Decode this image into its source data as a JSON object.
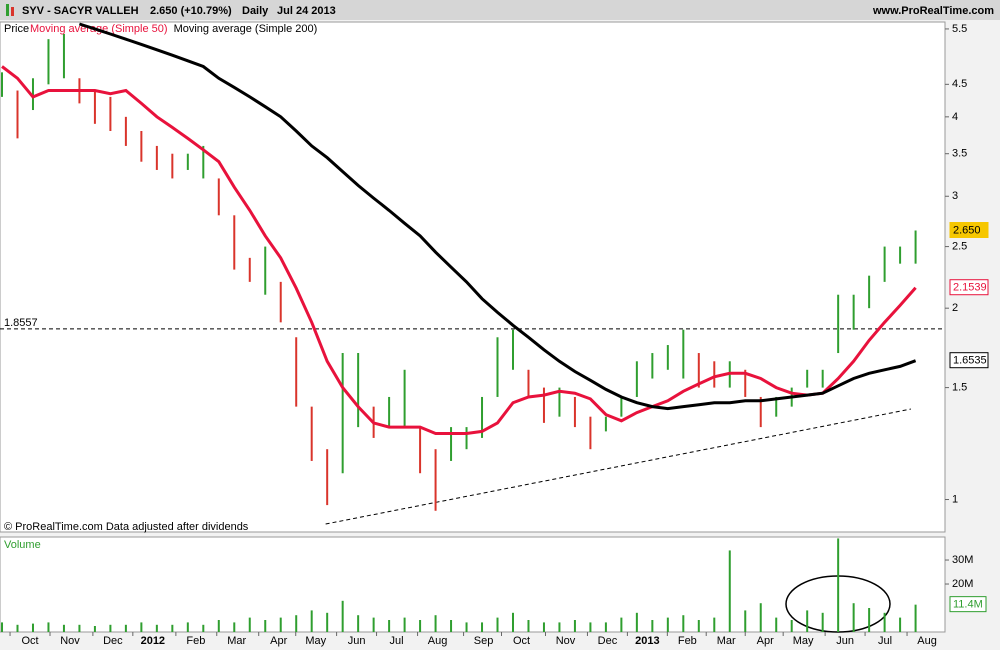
{
  "chart_data": [
    {
      "type": "price",
      "title": "SYV - SACYR VALLEH",
      "quote": "2.650 (+10.79%)",
      "period": "Daily",
      "date": "Jul 24 2013",
      "source": "www.ProRealTime.com",
      "footnote": "© ProRealTime.com  Data adjusted after dividends",
      "log_scale": true,
      "ylim": [
        0.889,
        5.64
      ],
      "xlim": [
        -0.13,
        60.9
      ],
      "yticks": [
        1,
        1.5,
        2,
        2.5,
        3,
        3.5,
        4,
        4.5,
        5.5
      ],
      "xticks": [
        {
          "value": 1.81,
          "label": "Oct"
        },
        {
          "value": 4.39,
          "label": "Nov"
        },
        {
          "value": 7.16,
          "label": "Dec"
        },
        {
          "value": 9.74,
          "label": "2012"
        },
        {
          "value": 12.52,
          "label": "Feb"
        },
        {
          "value": 15.16,
          "label": "Mar"
        },
        {
          "value": 17.87,
          "label": "Apr"
        },
        {
          "value": 20.26,
          "label": "May"
        },
        {
          "value": 22.9,
          "label": "Jun"
        },
        {
          "value": 25.48,
          "label": "Jul"
        },
        {
          "value": 28.13,
          "label": "Aug"
        },
        {
          "value": 31.1,
          "label": "Sep"
        },
        {
          "value": 33.55,
          "label": "Oct"
        },
        {
          "value": 36.39,
          "label": "Nov"
        },
        {
          "value": 39.1,
          "label": "Dec"
        },
        {
          "value": 41.68,
          "label": "2013"
        },
        {
          "value": 44.26,
          "label": "Feb"
        },
        {
          "value": 46.77,
          "label": "Mar"
        },
        {
          "value": 49.29,
          "label": "Apr"
        },
        {
          "value": 51.74,
          "label": "May"
        },
        {
          "value": 54.45,
          "label": "Jun"
        },
        {
          "value": 57.03,
          "label": "Jul"
        },
        {
          "value": 59.74,
          "label": "Aug"
        }
      ],
      "series": [
        {
          "name": "Price",
          "color": "#2f9e2f",
          "down_color": "#d9342b",
          "high": [
            4.7,
            4.4,
            4.6,
            5.3,
            5.4,
            4.6,
            4.4,
            4.3,
            4.0,
            3.8,
            3.6,
            3.5,
            3.5,
            3.6,
            3.2,
            2.8,
            2.4,
            2.5,
            2.2,
            1.8,
            1.4,
            1.2,
            1.7,
            1.7,
            1.4,
            1.45,
            1.6,
            1.3,
            1.2,
            1.3,
            1.3,
            1.45,
            1.8,
            1.85,
            1.6,
            1.5,
            1.5,
            1.45,
            1.35,
            1.35,
            1.45,
            1.65,
            1.7,
            1.75,
            1.85,
            1.7,
            1.65,
            1.65,
            1.6,
            1.45,
            1.45,
            1.5,
            1.6,
            1.6,
            2.1,
            2.1,
            2.25,
            2.5,
            2.5,
            2.65
          ],
          "low": [
            4.3,
            3.7,
            4.1,
            4.5,
            4.6,
            4.2,
            3.9,
            3.8,
            3.6,
            3.4,
            3.3,
            3.2,
            3.3,
            3.2,
            2.8,
            2.3,
            2.2,
            2.1,
            1.9,
            1.4,
            1.15,
            0.98,
            1.1,
            1.3,
            1.25,
            1.3,
            1.3,
            1.1,
            0.96,
            1.15,
            1.2,
            1.25,
            1.45,
            1.6,
            1.45,
            1.32,
            1.35,
            1.3,
            1.2,
            1.28,
            1.35,
            1.45,
            1.55,
            1.6,
            1.55,
            1.5,
            1.5,
            1.5,
            1.45,
            1.3,
            1.35,
            1.4,
            1.5,
            1.5,
            1.7,
            1.85,
            2.0,
            2.2,
            2.35,
            2.35
          ]
        },
        {
          "name": "Moving average (Simple 50)",
          "color": "#e8123c",
          "values": [
            4.8,
            4.6,
            4.3,
            4.4,
            4.4,
            4.4,
            4.4,
            4.35,
            4.4,
            4.2,
            4.0,
            3.85,
            3.7,
            3.55,
            3.4,
            3.1,
            2.85,
            2.6,
            2.4,
            2.15,
            1.9,
            1.65,
            1.5,
            1.4,
            1.32,
            1.3,
            1.3,
            1.3,
            1.27,
            1.27,
            1.27,
            1.28,
            1.32,
            1.42,
            1.45,
            1.46,
            1.48,
            1.47,
            1.44,
            1.36,
            1.33,
            1.37,
            1.4,
            1.43,
            1.48,
            1.52,
            1.56,
            1.58,
            1.58,
            1.55,
            1.5,
            1.47,
            1.46,
            1.47,
            1.55,
            1.65,
            1.78,
            1.9,
            2.02,
            2.1539
          ]
        },
        {
          "name": "Moving average (Simple 200)",
          "color": "#000000",
          "values": [
            null,
            null,
            null,
            null,
            null,
            5.6,
            5.5,
            5.4,
            5.3,
            5.2,
            5.1,
            5.0,
            4.9,
            4.8,
            4.6,
            4.45,
            4.3,
            4.15,
            4.0,
            3.8,
            3.6,
            3.45,
            3.28,
            3.12,
            2.98,
            2.85,
            2.72,
            2.6,
            2.45,
            2.32,
            2.2,
            2.07,
            1.97,
            1.88,
            1.8,
            1.72,
            1.65,
            1.59,
            1.54,
            1.49,
            1.45,
            1.42,
            1.4,
            1.39,
            1.4,
            1.41,
            1.42,
            1.42,
            1.43,
            1.43,
            1.44,
            1.45,
            1.46,
            1.47,
            1.51,
            1.55,
            1.58,
            1.6,
            1.62,
            1.6535
          ]
        }
      ],
      "price_label": "Price",
      "markers": [
        {
          "value": 2.65,
          "label": "2.650",
          "color": "#f6c700"
        },
        {
          "value": 2.1539,
          "label": "2.1539",
          "color": "#e8123c"
        },
        {
          "value": 1.6535,
          "label": "1.6535",
          "color": "#000000"
        }
      ],
      "hline": {
        "value": 1.8557,
        "label": "1.8557"
      },
      "trendline": {
        "x": [
          20.9,
          58.7
        ],
        "values": [
          0.915,
          1.388
        ]
      }
    },
    {
      "type": "bar",
      "title": "Volume",
      "color": "#2f9e2f",
      "ylim": [
        0,
        39.6
      ],
      "yticks": [
        {
          "value": 20,
          "label": "20M"
        },
        {
          "value": 30,
          "label": "30M"
        }
      ],
      "values": [
        4,
        3,
        3.5,
        4,
        3,
        3,
        2.5,
        3,
        3,
        4,
        3,
        3,
        4,
        3,
        5,
        4,
        6,
        5,
        6,
        7,
        9,
        8,
        13,
        7,
        6,
        5,
        6,
        5,
        7,
        5,
        4,
        4,
        6,
        8,
        5,
        4,
        4,
        5,
        4,
        4,
        6,
        8,
        5,
        6,
        7,
        5,
        6,
        34,
        9,
        12,
        6,
        5,
        9,
        8,
        39,
        12,
        10,
        8,
        6,
        11.4
      ],
      "marker": {
        "value": 11.4,
        "label": "11.4M"
      }
    }
  ]
}
